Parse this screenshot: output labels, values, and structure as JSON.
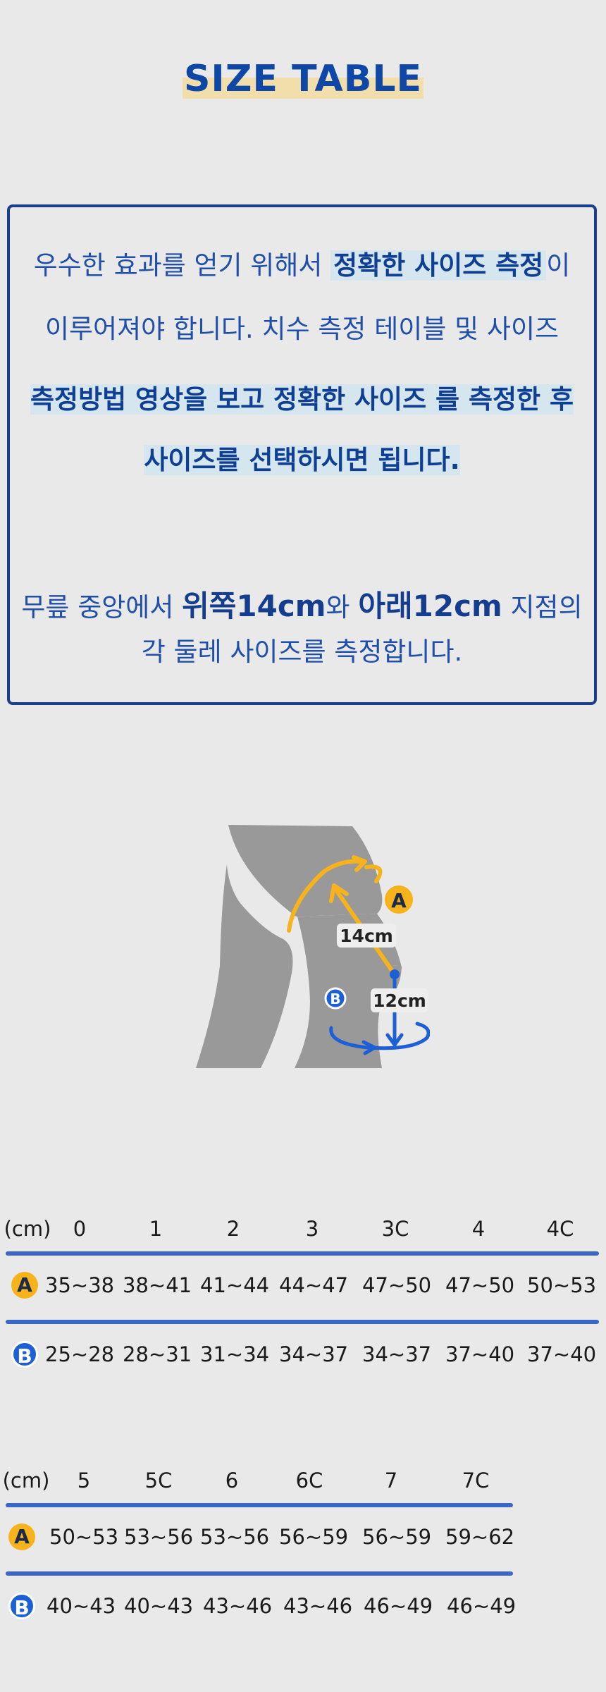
{
  "title": "SIZE TABLE",
  "intro": {
    "l1_a": "우수한 효과를 얻기 위해서 ",
    "l1_b": "정확한 사이즈 측정",
    "l1_c": "이",
    "l2": "이루어져야 합니다. 치수 측정 테이블 및 사이즈",
    "l3": "측정방법 영상을 보고 정확한 사이즈 를 측정한 후",
    "l4": "사이즈를 선택하시면 됩니다.",
    "l5_a": "무릎 중앙에서 ",
    "l5_b": "위쪽14cm",
    "l5_c": "와 ",
    "l5_d": "아래12cm",
    "l5_e": " 지점의",
    "l6": "각 둘레 사이즈를 측정합니다."
  },
  "diagram": {
    "upper_label": "14cm",
    "lower_label": "12cm",
    "badge_a": "A",
    "badge_b": "B"
  },
  "colors": {
    "accent_yellow": "#f7b31c",
    "accent_blue": "#1d5fd6",
    "text_blue": "#1f4fa8",
    "line_blue": "#3a66c6"
  },
  "table1": {
    "unit": "(cm)",
    "sizes": [
      "0",
      "1",
      "2",
      "3",
      "3C",
      "4",
      "4C"
    ],
    "a_label": "A",
    "b_label": "B",
    "a_values": [
      "35~38",
      "38~41",
      "41~44",
      "44~47",
      "47~50",
      "47~50",
      "50~53"
    ],
    "b_values": [
      "25~28",
      "28~31",
      "31~34",
      "34~37",
      "34~37",
      "37~40",
      "37~40"
    ]
  },
  "table2": {
    "unit": "(cm)",
    "sizes": [
      "5",
      "5C",
      "6",
      "6C",
      "7",
      "7C"
    ],
    "a_label": "A",
    "b_label": "B",
    "a_values": [
      "50~53",
      "53~56",
      "53~56",
      "56~59",
      "56~59",
      "59~62"
    ],
    "b_values": [
      "40~43",
      "40~43",
      "43~46",
      "43~46",
      "46~49",
      "46~49"
    ]
  }
}
